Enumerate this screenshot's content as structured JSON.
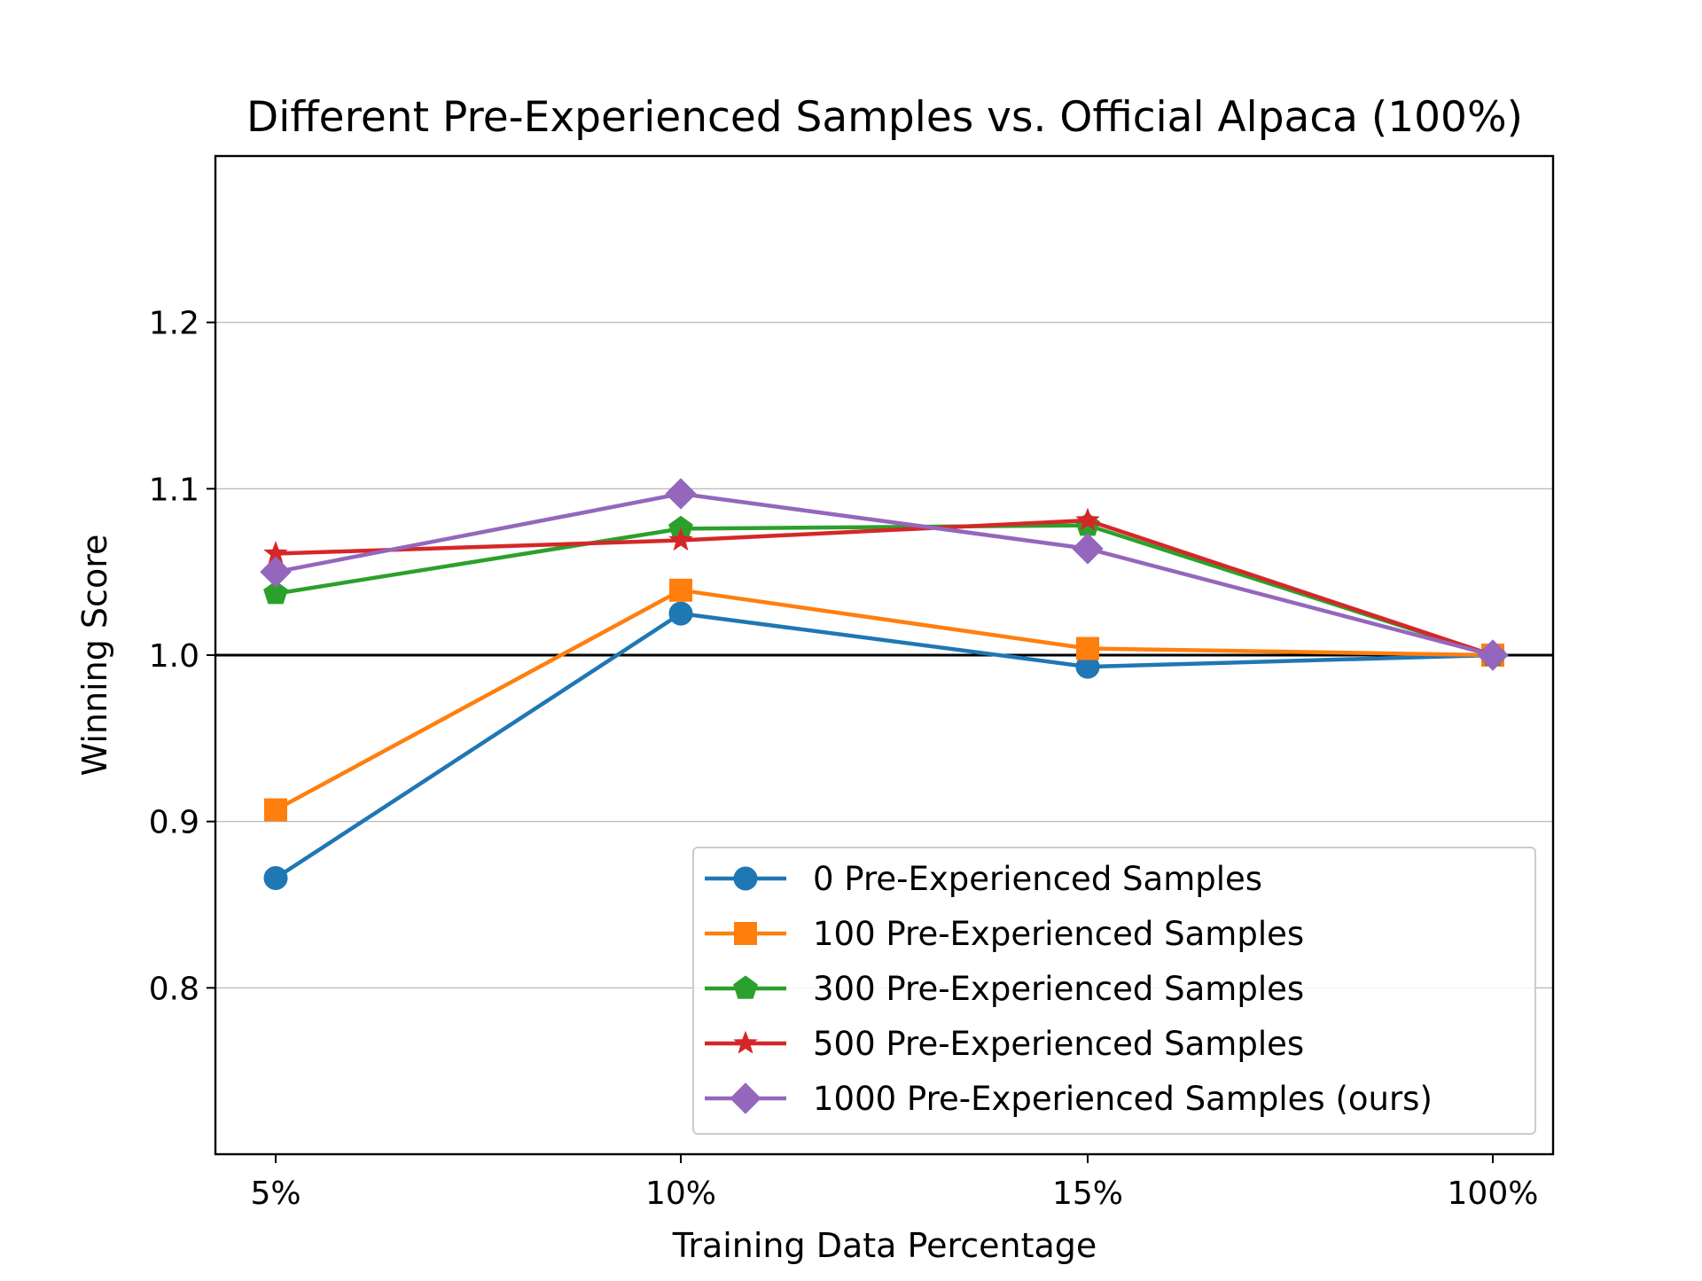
{
  "chart_data": {
    "type": "line",
    "title": "Different Pre-Experienced Samples vs. Official Alpaca (100%)",
    "xlabel": "Training Data Percentage",
    "ylabel": "Winning Score",
    "categories": [
      "5%",
      "10%",
      "15%",
      "100%"
    ],
    "ylim": [
      0.7,
      1.3
    ],
    "yticks": [
      0.8,
      0.9,
      1.0,
      1.1,
      1.2
    ],
    "ytick_labels": [
      "0.8",
      "0.9",
      "1.0",
      "1.1",
      "1.2"
    ],
    "grid": "horizontal",
    "reference_line": 1.0,
    "legend_position": "lower-right",
    "series": [
      {
        "name": "0 Pre-Experienced Samples",
        "color": "#1f77b4",
        "marker": "circle",
        "values": [
          0.866,
          1.025,
          0.993,
          1.0
        ]
      },
      {
        "name": "100 Pre-Experienced Samples",
        "color": "#ff7f0e",
        "marker": "square",
        "values": [
          0.907,
          1.039,
          1.004,
          1.0
        ]
      },
      {
        "name": "300 Pre-Experienced Samples",
        "color": "#2ca02c",
        "marker": "pentagon",
        "values": [
          1.037,
          1.076,
          1.078,
          1.0
        ]
      },
      {
        "name": "500 Pre-Experienced Samples",
        "color": "#d62728",
        "marker": "star",
        "values": [
          1.061,
          1.069,
          1.081,
          1.0
        ]
      },
      {
        "name": "1000 Pre-Experienced Samples (ours)",
        "color": "#9467bd",
        "marker": "diamond",
        "values": [
          1.05,
          1.097,
          1.064,
          1.0
        ]
      }
    ]
  }
}
